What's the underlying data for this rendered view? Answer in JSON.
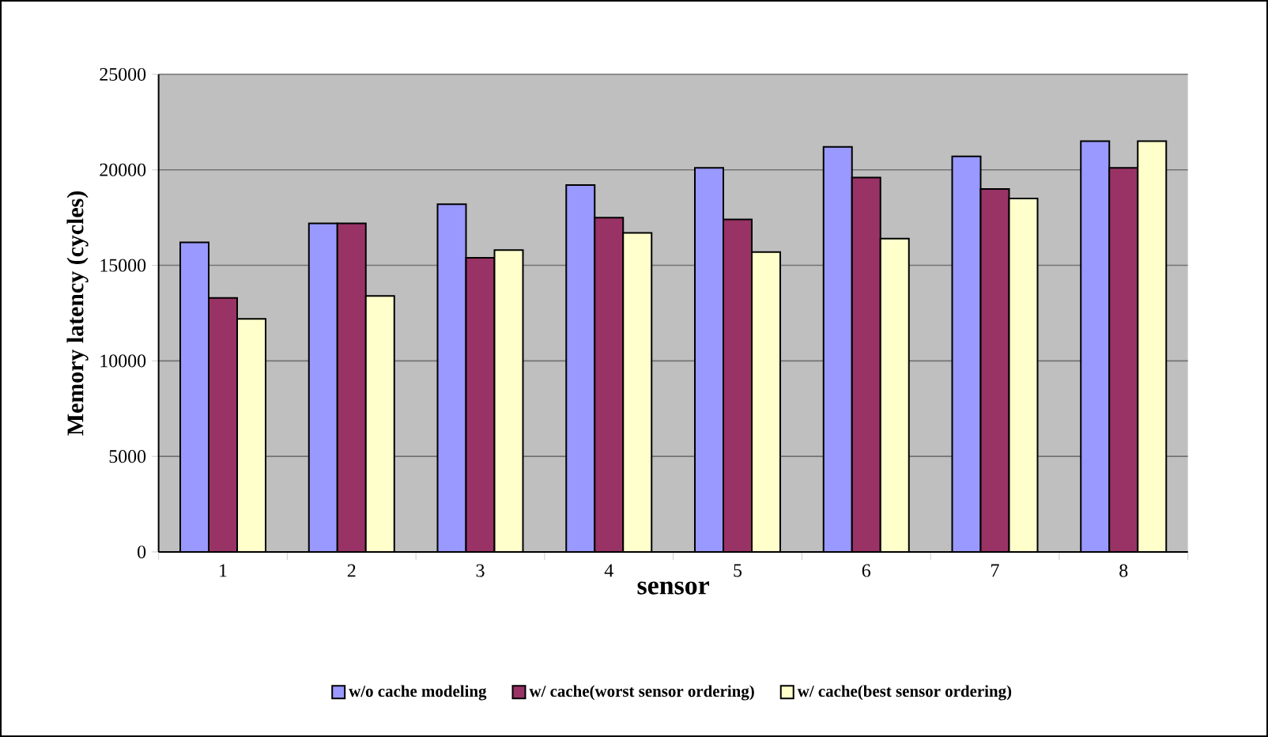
{
  "chart_data": {
    "type": "bar",
    "xlabel": "sensor",
    "ylabel": "Memory latency (cycles)",
    "categories": [
      "1",
      "2",
      "3",
      "4",
      "5",
      "6",
      "7",
      "8"
    ],
    "series": [
      {
        "name": "w/o cache modeling",
        "color": "#9999ff",
        "values": [
          16200,
          17200,
          18200,
          19200,
          20100,
          21200,
          20700,
          21500
        ]
      },
      {
        "name": "w/ cache(worst sensor ordering)",
        "color": "#993366",
        "values": [
          13300,
          17200,
          15400,
          17500,
          17400,
          19600,
          19000,
          20100
        ]
      },
      {
        "name": "w/ cache(best sensor ordering)",
        "color": "#ffffcc",
        "values": [
          12200,
          13400,
          15800,
          16700,
          15700,
          16400,
          18500,
          21500
        ]
      }
    ],
    "ylim": [
      0,
      25000
    ],
    "yticks": [
      0,
      5000,
      10000,
      15000,
      20000,
      25000
    ],
    "grid": "y",
    "legend": "bottom"
  }
}
